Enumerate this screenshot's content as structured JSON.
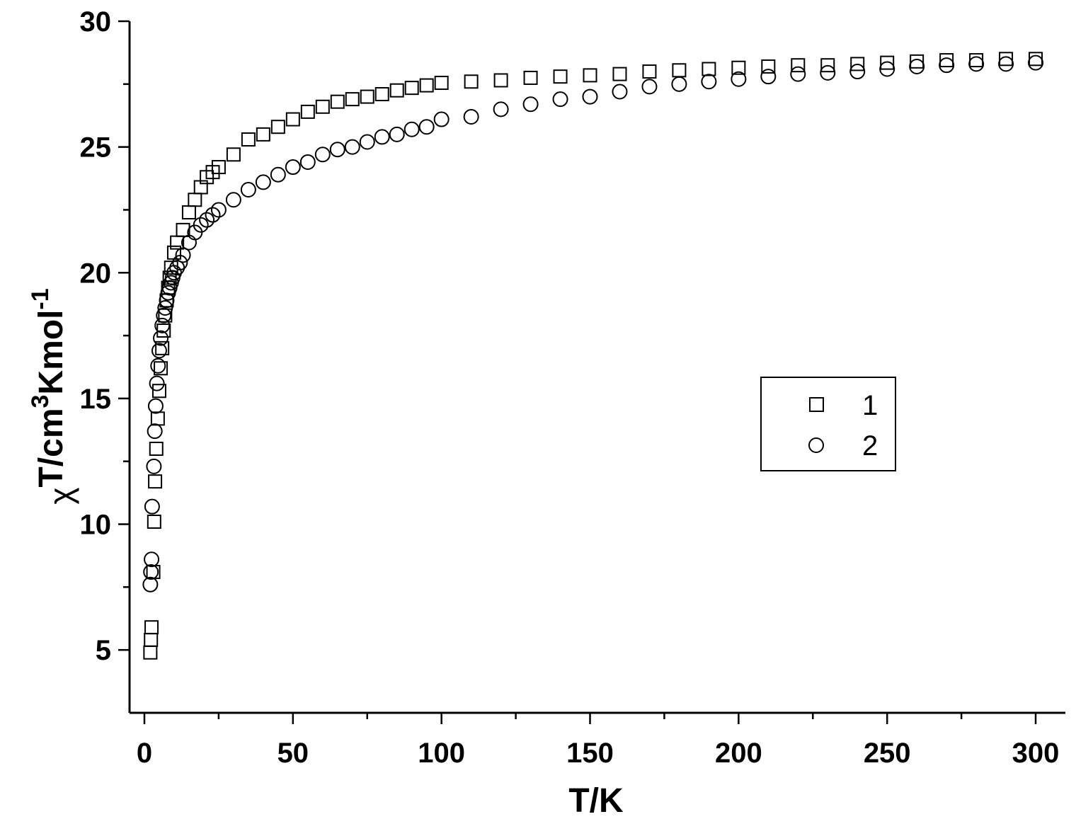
{
  "chart_data": {
    "type": "scatter",
    "title": "",
    "xlabel": "T/K",
    "ylabel": {
      "chi": "χ",
      "main": "T/cm",
      "sup3": "3",
      "mid": "Kmol",
      "supm1": "-1"
    },
    "xlim": [
      -5,
      310
    ],
    "ylim": [
      2.5,
      30
    ],
    "xticks": [
      "0",
      "50",
      "100",
      "150",
      "200",
      "250",
      "300"
    ],
    "xtick_values": [
      0,
      50,
      100,
      150,
      200,
      250,
      300
    ],
    "yticks": [
      "5",
      "10",
      "15",
      "20",
      "25",
      "30"
    ],
    "ytick_values": [
      5,
      10,
      15,
      20,
      25,
      30
    ],
    "grid": false,
    "legend_position": "right-middle",
    "series": [
      {
        "name": "1",
        "marker": "square",
        "x": [
          2,
          2.2,
          2.4,
          3,
          3.3,
          3.6,
          4,
          4.5,
          5,
          5.5,
          6,
          6.5,
          7,
          7.5,
          8,
          8.5,
          9,
          10,
          11,
          13,
          15,
          17,
          19,
          21,
          23,
          25,
          30,
          35,
          40,
          45,
          50,
          55,
          60,
          65,
          70,
          75,
          80,
          85,
          90,
          95,
          100,
          110,
          120,
          130,
          140,
          150,
          160,
          170,
          180,
          190,
          200,
          210,
          220,
          230,
          240,
          250,
          260,
          270,
          280,
          290,
          300
        ],
        "y": [
          4.9,
          5.4,
          5.9,
          8.1,
          10.1,
          11.7,
          13.0,
          14.2,
          15.3,
          16.2,
          17.0,
          17.7,
          18.3,
          18.9,
          19.4,
          19.8,
          20.2,
          20.8,
          21.2,
          21.7,
          22.4,
          22.9,
          23.4,
          23.8,
          24.0,
          24.2,
          24.7,
          25.3,
          25.5,
          25.8,
          26.1,
          26.4,
          26.6,
          26.8,
          26.9,
          27.0,
          27.1,
          27.25,
          27.35,
          27.45,
          27.55,
          27.6,
          27.65,
          27.75,
          27.8,
          27.85,
          27.9,
          28.0,
          28.05,
          28.1,
          28.15,
          28.2,
          28.25,
          28.25,
          28.3,
          28.35,
          28.4,
          28.45,
          28.45,
          28.5,
          28.5
        ]
      },
      {
        "name": "2",
        "marker": "circle",
        "x": [
          2,
          2.2,
          2.4,
          2.6,
          3.2,
          3.5,
          3.8,
          4.2,
          4.6,
          5,
          5.5,
          6,
          6.5,
          7,
          7.5,
          8,
          8.5,
          9,
          9.5,
          10,
          11,
          12,
          13,
          15,
          17,
          19,
          21,
          23,
          25,
          30,
          35,
          40,
          45,
          50,
          55,
          60,
          65,
          70,
          75,
          80,
          85,
          90,
          95,
          100,
          110,
          120,
          130,
          140,
          150,
          160,
          170,
          180,
          190,
          200,
          210,
          220,
          230,
          240,
          250,
          260,
          270,
          280,
          290,
          300
        ],
        "y": [
          7.6,
          8.1,
          8.6,
          10.7,
          12.3,
          13.7,
          14.7,
          15.6,
          16.3,
          16.9,
          17.4,
          17.9,
          18.3,
          18.6,
          18.9,
          19.2,
          19.4,
          19.6,
          19.8,
          20.0,
          20.2,
          20.4,
          20.7,
          21.2,
          21.6,
          21.9,
          22.1,
          22.3,
          22.5,
          22.9,
          23.3,
          23.6,
          23.9,
          24.2,
          24.4,
          24.7,
          24.9,
          25.0,
          25.2,
          25.4,
          25.5,
          25.7,
          25.8,
          26.1,
          26.2,
          26.5,
          26.7,
          26.9,
          27.0,
          27.2,
          27.4,
          27.5,
          27.6,
          27.7,
          27.8,
          27.9,
          27.95,
          28.0,
          28.1,
          28.2,
          28.25,
          28.3,
          28.3,
          28.35
        ]
      }
    ]
  }
}
